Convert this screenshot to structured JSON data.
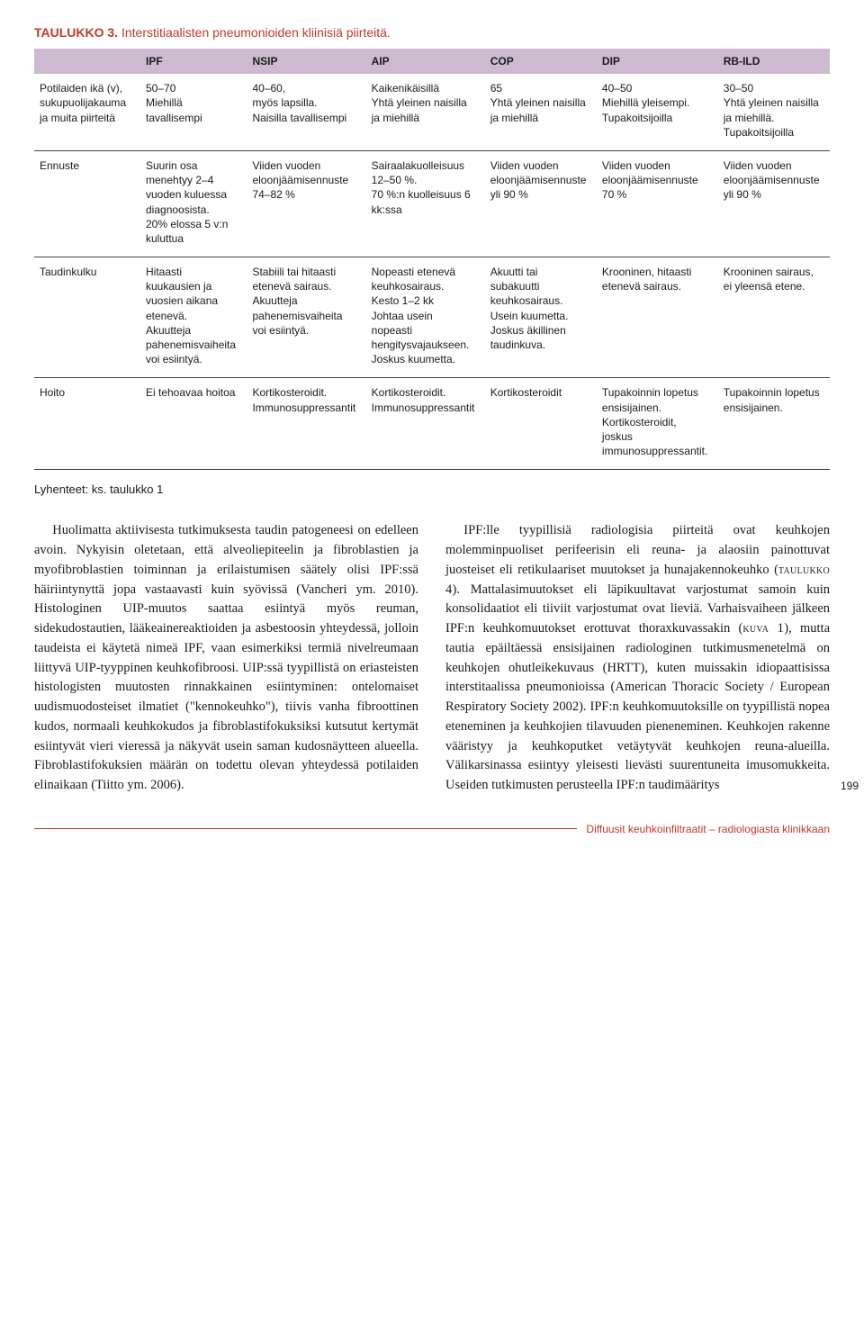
{
  "table": {
    "title_label": "Taulukko 3.",
    "title_rest": " Interstitiaalisten pneumonioiden kliinisiä piirteitä.",
    "columns": [
      "",
      "IPF",
      "NSIP",
      "AIP",
      "COP",
      "DIP",
      "RB-ILD"
    ],
    "rows": [
      {
        "label": "Potilaiden ikä (v), sukupuolijakauma ja muita piirteitä",
        "cells": [
          "50–70\nMiehillä tavallisempi",
          "40–60,\nmyös lapsilla.\nNaisilla tavallisempi",
          "Kaikenikäisillä\nYhtä yleinen naisilla ja miehillä",
          "65\nYhtä yleinen naisilla ja miehillä",
          "40–50\nMiehillä yleisempi.\nTupakoitsijoilla",
          "30–50\nYhtä yleinen naisilla ja miehillä.\nTupakoitsijoilla"
        ]
      },
      {
        "label": "Ennuste",
        "cells": [
          "Suurin osa menehtyy 2–4 vuoden kuluessa diagnoosista.\n20% elossa 5 v:n kuluttua",
          "Viiden vuoden eloonjäämisennuste 74–82 %",
          "Sairaalakuolleisuus 12–50 %.\n70 %:n kuolleisuus 6 kk:ssa",
          "Viiden vuoden eloonjäämisennuste yli 90 %",
          "Viiden vuoden eloonjäämisennuste 70 %",
          "Viiden vuoden eloonjäämisennuste yli 90 %"
        ]
      },
      {
        "label": "Taudinkulku",
        "cells": [
          "Hitaasti kuukausien ja vuosien aikana etenevä.\nAkuutteja pahenemisvaiheita voi esiintyä.",
          "Stabiili tai hitaasti etenevä sairaus.\nAkuutteja pahenemisvaiheita voi esiintyä.",
          "Nopeasti etenevä keuhkosairaus.\nKesto 1–2 kk\nJohtaa usein nopeasti hengitysvajaukseen.\nJoskus kuumetta.",
          "Akuutti tai subakuutti keuhkosairaus.\nUsein kuumetta.\nJoskus äkillinen taudinkuva.",
          "Krooninen, hitaasti etenevä sairaus.",
          "Krooninen sairaus, ei yleensä etene."
        ]
      },
      {
        "label": "Hoito",
        "cells": [
          "Ei tehoavaa hoitoa",
          "Kortikosteroidit.\nImmunosuppressantit",
          "Kortikosteroidit.\nImmunosuppressantit",
          "Kortikosteroidit",
          "Tupakoinnin lopetus ensisijainen.\nKortikosteroidit, joskus immunosuppressantit.",
          "Tupakoinnin lopetus ensisijainen."
        ]
      }
    ],
    "footnote": "Lyhenteet: ks. taulukko 1"
  },
  "body": {
    "para1": "Huolimatta aktiivisesta tutkimuksesta taudin patogeneesi on edelleen avoin. Nykyisin oletetaan, että alveoliepiteelin ja fibroblastien ja myofibroblastien toiminnan ja erilaistumisen säätely olisi IPF:ssä häiriintynyttä jopa vastaavasti kuin syövissä (Vancheri ym. 2010). Histologinen UIP-muutos saattaa esiintyä myös reuman, sidekudostautien, lääkeainereaktioiden ja asbestoosin yhteydessä, jolloin taudeista ei käytetä nimeä IPF, vaan esimerkiksi termiä nivelreumaan liittyvä UIP-tyyppinen keuhkofibroosi. UIP:ssä tyypillistä on eriasteisten histologisten muutosten rinnakkainen esiintyminen: ontelomaiset uudismuodosteiset ilmatiet (\"kennokeuhko\"), tiivis vanha fibroottinen kudos, normaali keuhkokudos ja fibroblastifokuksiksi kutsutut kertymät esiintyvät vieri vieressä ja näkyvät usein saman kudosnäytteen alueella. Fibroblastifokuksien määrän on todettu olevan yhteydessä potilaiden elinaikaan (Tiitto ym. 2006).",
    "para2_pre": "IPF:lle tyypillisiä radiologisia piirteitä ovat keuhkojen molemminpuoliset perifeerisin eli reuna- ja alaosiin painottuvat juosteiset eli retikulaariset muutokset ja hunajakennokeuhko (",
    "para2_sc": "taulukko 4",
    "para2_mid": "). Mattalasimuutokset eli läpikuultavat varjostumat samoin kuin konsolidaatiot eli tiiviit varjostumat ovat lieviä. Varhaisvaiheen jälkeen IPF:n keuhkomuutokset erottuvat thoraxkuvassakin (",
    "para2_sc2": "kuva 1",
    "para2_post": "), mutta tautia epäiltäessä ensisijainen radiologinen tutkimusmenetelmä on keuhkojen ohutleikekuvaus (HRTT), kuten muissakin idiopaattisissa interstitaalissa pneumonioissa (American Thoracic Society / European Respiratory Society 2002). IPF:n keuhkomuutoksille on tyypillistä nopea eteneminen ja keuhkojien tilavuuden pieneneminen. Keuhkojen rakenne vääristyy ja keuhkoputket vetäytyvät keuhkojen reuna-alueilla. Välikarsinassa esiintyy yleisesti lievästi suurentuneita imusomukkeita. Useiden tutkimusten perusteella IPF:n taudimääritys"
  },
  "pagenum": "199",
  "footer": "Diffuusit keuhkoinfiltraatit – radiologiasta klinikkaan"
}
